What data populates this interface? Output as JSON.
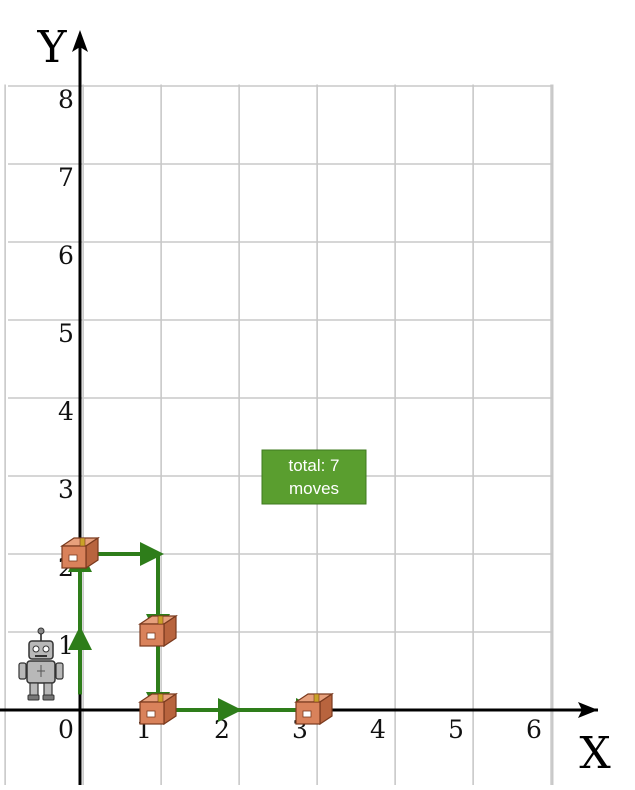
{
  "axes": {
    "x_label": "X",
    "y_label": "Y",
    "x_ticks": [
      "0",
      "1",
      "2",
      "3",
      "4",
      "5",
      "6"
    ],
    "y_ticks": [
      "1",
      "2",
      "3",
      "4",
      "5",
      "6",
      "7",
      "8"
    ],
    "x_range": [
      0,
      6
    ],
    "y_range": [
      0,
      8
    ]
  },
  "annotation": {
    "line1": "total: 7",
    "line2": "moves",
    "fill": "#5a9e2f"
  },
  "robot": {
    "x": -0.5,
    "y": 0.5,
    "icon": "robot-icon"
  },
  "boxes": [
    {
      "x": 0,
      "y": 2
    },
    {
      "x": 1,
      "y": 1
    },
    {
      "x": 1,
      "y": 0
    },
    {
      "x": 3,
      "y": 0
    }
  ],
  "path": [
    {
      "from": [
        0,
        0.2
      ],
      "to": [
        0,
        1
      ]
    },
    {
      "from": [
        0,
        1
      ],
      "to": [
        0,
        2
      ]
    },
    {
      "from": [
        0,
        2
      ],
      "to": [
        1,
        2
      ]
    },
    {
      "from": [
        1,
        2
      ],
      "to": [
        1,
        1
      ]
    },
    {
      "from": [
        1,
        1
      ],
      "to": [
        1,
        0
      ]
    },
    {
      "from": [
        1,
        0
      ],
      "to": [
        2,
        0
      ]
    },
    {
      "from": [
        2,
        0
      ],
      "to": [
        3,
        0
      ]
    }
  ],
  "colors": {
    "grid": "#c8c8c8",
    "axis": "#000000",
    "path": "#2e7d1a",
    "box": "#d9825b",
    "robot": "#b8b8b8"
  }
}
